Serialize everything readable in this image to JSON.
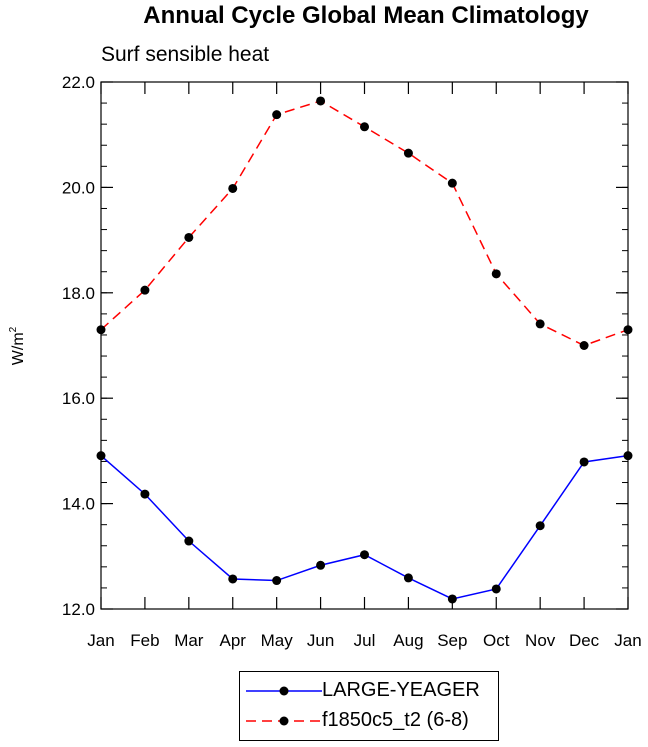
{
  "title": "Annual Cycle Global Mean Climatology",
  "subtitle": "Surf sensible heat",
  "colors": {
    "series_1": "#0000ff",
    "series_2": "#ff0000",
    "marker": "#000000"
  },
  "chart_data": {
    "type": "line",
    "title": "Annual Cycle Global Mean Climatology",
    "subtitle": "Surf sensible heat",
    "ylabel": "W/m",
    "ylabel_sup": "2",
    "xlabel": "",
    "categories": [
      "Jan",
      "Feb",
      "Mar",
      "Apr",
      "May",
      "Jun",
      "Jul",
      "Aug",
      "Sep",
      "Oct",
      "Nov",
      "Dec",
      "Jan"
    ],
    "ylim": [
      12.0,
      22.0
    ],
    "yticks": [
      "12.0",
      "14.0",
      "16.0",
      "18.0",
      "20.0",
      "22.0"
    ],
    "legend": "bottom-center",
    "grid": false,
    "series": [
      {
        "name": "LARGE-YEAGER",
        "style": "solid",
        "values": [
          14.91,
          14.18,
          13.29,
          12.57,
          12.54,
          12.83,
          13.03,
          12.59,
          12.19,
          12.38,
          13.58,
          14.79,
          14.91
        ]
      },
      {
        "name": "f1850c5_t2 (6-8)",
        "style": "dashed",
        "values": [
          17.3,
          18.05,
          19.05,
          19.98,
          21.38,
          21.64,
          21.15,
          20.65,
          20.08,
          18.36,
          17.41,
          17.0,
          17.3
        ]
      }
    ]
  }
}
